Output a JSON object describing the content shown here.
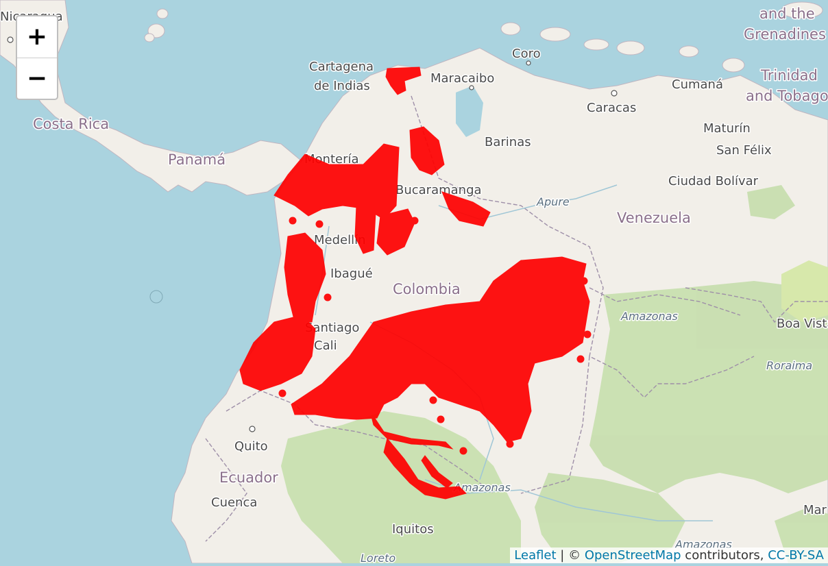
{
  "map": {
    "zoom_in_label": "+",
    "zoom_out_label": "−",
    "attribution": {
      "leaflet": "Leaflet",
      "sep": " | © ",
      "osm": "OpenStreetMap",
      "contrib": " contributors, ",
      "license": "CC-BY-SA"
    },
    "labels": {
      "nicaragua": "Nicaragua",
      "costa_rica": "Costa Rica",
      "panama": "Panamá",
      "cartagena_1": "Cartagena",
      "cartagena_2": "de Indias",
      "maracaibo": "Maracaibo",
      "coro": "Coro",
      "caracas": "Caracas",
      "cumana": "Cumaná",
      "trinidad_1": "Trinidad",
      "trinidad_2": "and Tobago",
      "grenadines_1": "and the",
      "grenadines_2": "Grenadines",
      "maturin": "Maturín",
      "san_felix": "San Félix",
      "ciudad_bolivar": "Ciudad Bolívar",
      "barinas": "Barinas",
      "monteria": "Montería",
      "bucaramanga": "Bucaramanga",
      "apure": "Apure",
      "venezuela": "Venezuela",
      "medellin": "Medellín",
      "ibague": "Ibagué",
      "colombia": "Colombia",
      "amazonas_1": "Amazonas",
      "boa_vista": "Boa Vista",
      "roraima": "Roraima",
      "santiago": "Santiago",
      "cali": "Cali",
      "quito": "Quito",
      "ecuador": "Ecuador",
      "cuenca": "Cuenca",
      "amazonas_2": "Amazonas",
      "iquitos": "Iquitos",
      "loreto": "Loreto",
      "amazonas_3": "Amazonas",
      "manaus_partial": "Mar"
    },
    "colors": {
      "water": "#aad3df",
      "land": "#f2efe9",
      "forest": "#c8dfb0",
      "points": "#ff0000"
    }
  }
}
